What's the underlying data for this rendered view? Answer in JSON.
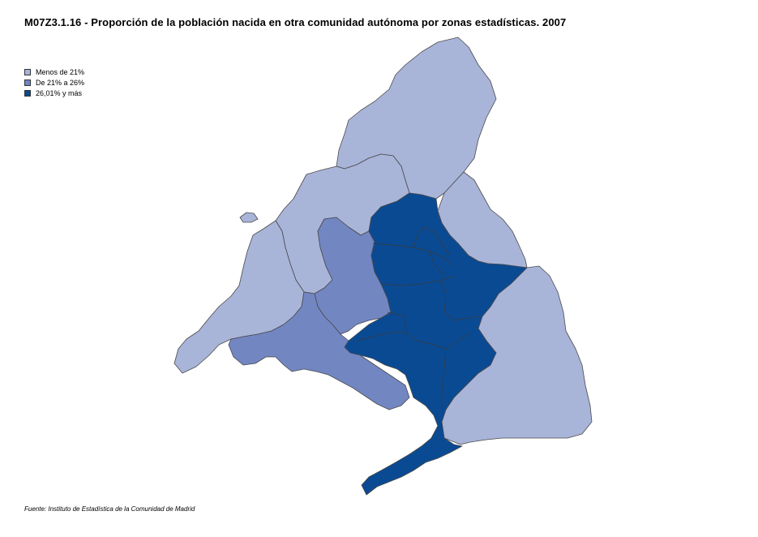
{
  "title": "M07Z3.1.16 - Proporción de la población nacida en otra comunidad autónoma por zonas estadísticas. 2007",
  "legend": [
    {
      "label": "Menos de 21%",
      "color": "#a9b4d9"
    },
    {
      "label": "De 21% a 26%",
      "color": "#7286c2"
    },
    {
      "label": "26,01% y más",
      "color": "#0a4a93"
    }
  ],
  "source": "Fuente: Instituto de Estadística de la Comunidad de Madrid"
}
